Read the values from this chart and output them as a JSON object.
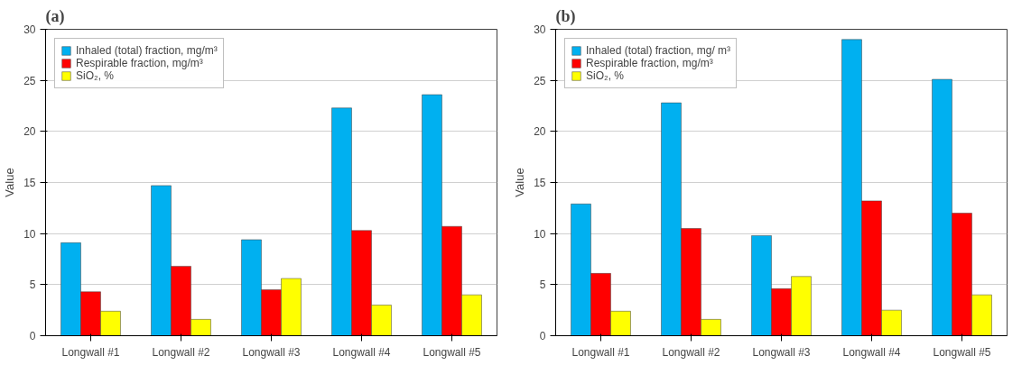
{
  "chart_data": [
    {
      "type": "bar",
      "title": "(a)",
      "ylabel": "Value",
      "categories": [
        "Longwall #1",
        "Longwall #2",
        "Longwall #3",
        "Longwall #4",
        "Longwall #5"
      ],
      "ylim": [
        0,
        30
      ],
      "yticks": [
        0,
        5,
        10,
        15,
        20,
        25,
        30
      ],
      "grid": "y",
      "legend": "top left",
      "series": [
        {
          "name": "Inhaled (total) fraction, mg/m³",
          "color": "#00b0f0",
          "values": [
            9.1,
            14.7,
            9.4,
            22.3,
            23.6
          ]
        },
        {
          "name": "Respirable fraction, mg/m³",
          "color": "#ff0000",
          "values": [
            4.3,
            6.8,
            4.5,
            10.3,
            10.7
          ]
        },
        {
          "name": "SiO₂, %",
          "color": "#ffff00",
          "values": [
            2.4,
            1.6,
            5.6,
            3.0,
            4.0
          ]
        }
      ]
    },
    {
      "type": "bar",
      "title": "(b)",
      "ylabel": "Value",
      "categories": [
        "Longwall #1",
        "Longwall #2",
        "Longwall #3",
        "Longwall #4",
        "Longwall #5"
      ],
      "ylim": [
        0,
        30
      ],
      "yticks": [
        0,
        5,
        10,
        15,
        20,
        25,
        30
      ],
      "grid": "y",
      "legend": "top left",
      "series": [
        {
          "name": "Inhaled (total) fraction, mg/ m³",
          "color": "#00b0f0",
          "values": [
            12.9,
            22.8,
            9.8,
            29.0,
            25.1
          ]
        },
        {
          "name": "Respirable fraction, mg/m³",
          "color": "#ff0000",
          "values": [
            6.1,
            10.5,
            4.6,
            13.2,
            12.0
          ]
        },
        {
          "name": "SiO₂, %",
          "color": "#ffff00",
          "values": [
            2.4,
            1.6,
            5.8,
            2.5,
            4.0
          ]
        }
      ]
    }
  ]
}
